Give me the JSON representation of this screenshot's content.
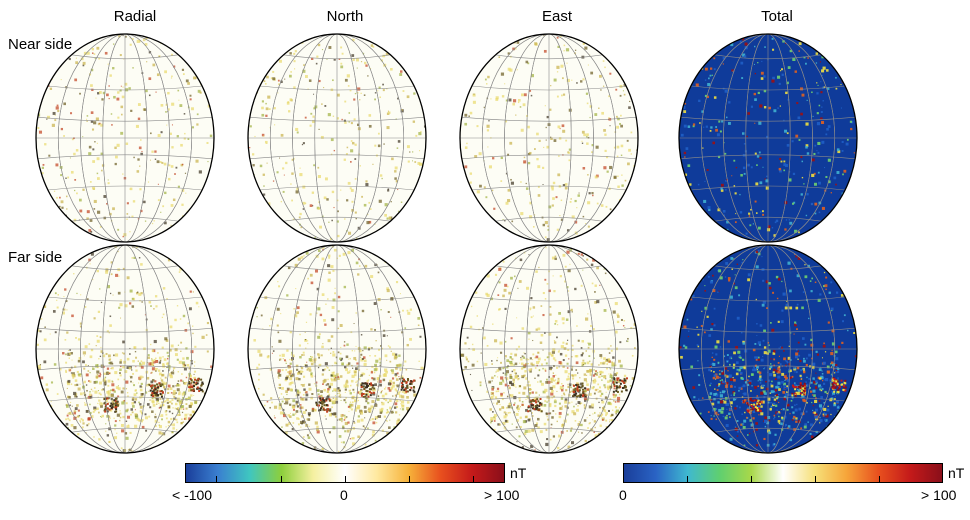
{
  "columns": {
    "radial": "Radial",
    "north": "North",
    "east": "East",
    "total": "Total"
  },
  "rows": {
    "near": "Near side",
    "far": "Far side"
  },
  "colorbar_components": {
    "unit": "nT",
    "min_label": "< -100",
    "mid_label": "0",
    "max_label": "> 100",
    "colors": [
      "#1a3e9a",
      "#3a7fd0",
      "#3fc6c0",
      "#8dcf3c",
      "#f5f0a0",
      "#ffffff",
      "#ffe9a0",
      "#f6b23a",
      "#e8501e",
      "#c41a1a",
      "#8a0f1a"
    ]
  },
  "colorbar_total": {
    "unit": "nT",
    "min_label": "0",
    "max_label": "> 100",
    "colors": [
      "#1a3e9a",
      "#2a63c4",
      "#3fb8d0",
      "#5fcf70",
      "#a8d84a",
      "#ffffff",
      "#f6e07a",
      "#f6a53a",
      "#e8501e",
      "#c41a1a",
      "#8a0f1a"
    ]
  },
  "colors": {
    "globe_bg_components": "#fdfdf5",
    "globe_bg_total": "#0f3b9a",
    "grid": "#8a8a8a",
    "speckle_components": [
      "#e8d86a",
      "#c8b048",
      "#a0b040",
      "#6a5a20",
      "#3a3020",
      "#c04020"
    ],
    "speckle_total": [
      "#1f5fc6",
      "#3fb0d0",
      "#6fd070",
      "#f0e040",
      "#e06020",
      "#a01010"
    ]
  }
}
